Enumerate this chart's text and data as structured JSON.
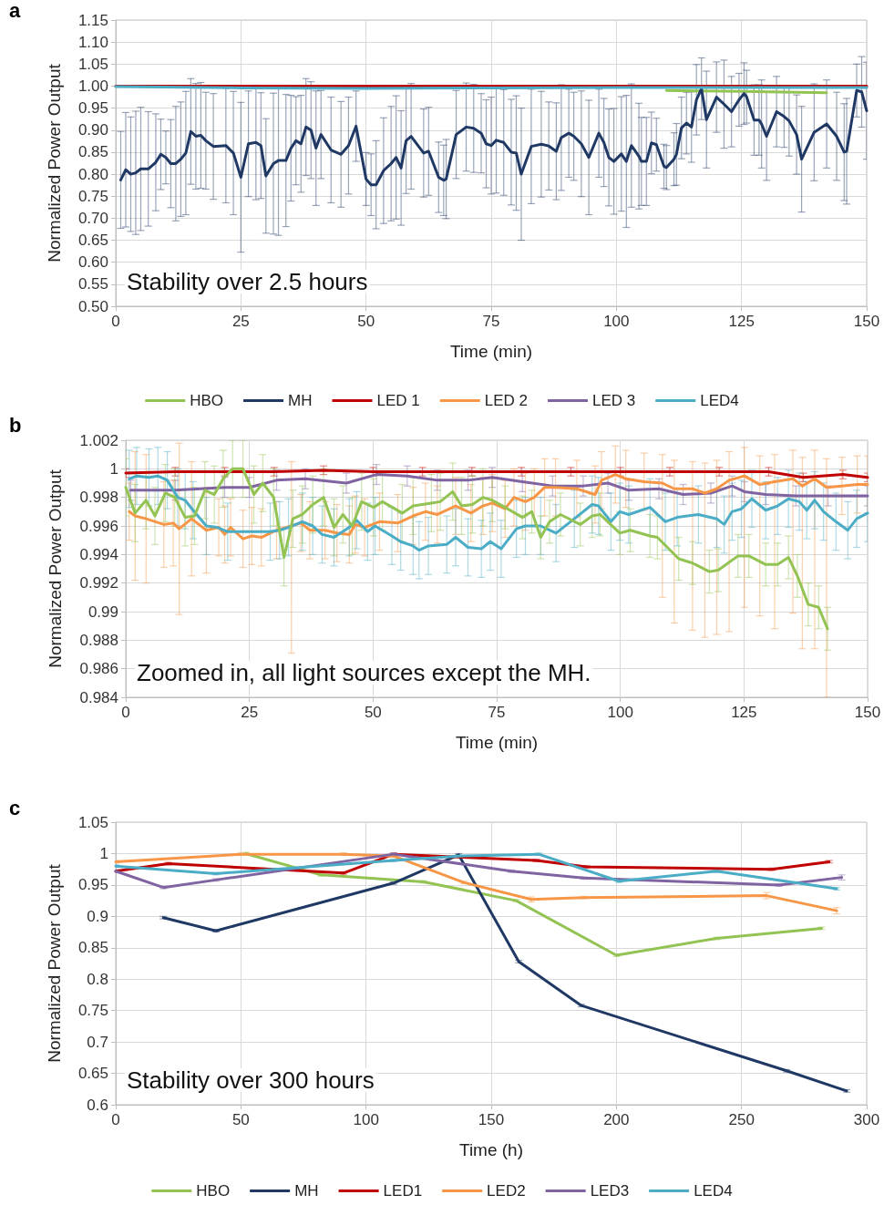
{
  "chart_data": [
    {
      "type": "line",
      "title": "a",
      "xlabel": "Time (min)",
      "ylabel": "Normalized Power Output",
      "annotations": [
        "Stability over 2.5 hours"
      ],
      "xlim": [
        0,
        150
      ],
      "xticks": [
        0,
        25,
        50,
        75,
        100,
        125,
        150
      ],
      "ylim": [
        0.5,
        1.15
      ],
      "yticks": [
        {
          "value": 0.5,
          "label": "0.50"
        },
        0.55,
        {
          "value": 0.6,
          "label": "0.60"
        },
        0.65,
        {
          "value": 0.7,
          "label": "0.70"
        },
        0.75,
        {
          "value": 0.8,
          "label": "0.80"
        },
        0.85,
        {
          "value": 0.9,
          "label": "0.90"
        },
        0.95,
        {
          "value": 1,
          "label": "1.00"
        },
        1.05,
        {
          "value": 1.1,
          "label": "1.10"
        },
        1.15
      ],
      "grid": true,
      "legend": "bottom",
      "marker": "none",
      "line_style": "solid",
      "series": [
        {
          "name": "HBO",
          "color": "#92c353",
          "x": [
            110,
            125,
            142
          ],
          "values": [
            0.99,
            0.988,
            0.985
          ]
        },
        {
          "name": "MH",
          "color": "#1f3864",
          "x": [
            1,
            2,
            3,
            4,
            5,
            6.5,
            8,
            9,
            10,
            11,
            12,
            13,
            14,
            15,
            16,
            17,
            18,
            19.5,
            22,
            23.5,
            25,
            26.5,
            28,
            29,
            30,
            31.5,
            32.5,
            34,
            35,
            36,
            37,
            38,
            39,
            40,
            41,
            43,
            45,
            46.5,
            48,
            50,
            51,
            52,
            53.5,
            55,
            56,
            57,
            58,
            59,
            61.5,
            62.5,
            64.5,
            65.5,
            66,
            68,
            70,
            71.5,
            73,
            74,
            75,
            76,
            77.5,
            79,
            80,
            81,
            83,
            85,
            86.5,
            88,
            89,
            90.5,
            91.5,
            93,
            94.5,
            96.5,
            97.5,
            98.5,
            99.5,
            101,
            102,
            103,
            104.5,
            105,
            106,
            107,
            108,
            109.5,
            110,
            111.5,
            112,
            113,
            114,
            115,
            116,
            117,
            118,
            120,
            121.5,
            123,
            124.5,
            125.5,
            126,
            127.5,
            128.5,
            129,
            130,
            132,
            133.5,
            134.5,
            136,
            137,
            139.5,
            142,
            144,
            145.5,
            146,
            148,
            149,
            150
          ],
          "values": [
            0.787,
            0.81,
            0.8,
            0.803,
            0.812,
            0.812,
            0.827,
            0.845,
            0.838,
            0.824,
            0.824,
            0.834,
            0.848,
            0.897,
            0.886,
            0.888,
            0.876,
            0.863,
            0.865,
            0.848,
            0.793,
            0.869,
            0.872,
            0.865,
            0.796,
            0.824,
            0.831,
            0.831,
            0.859,
            0.876,
            0.869,
            0.907,
            0.9,
            0.859,
            0.89,
            0.855,
            0.845,
            0.865,
            0.909,
            0.789,
            0.776,
            0.776,
            0.808,
            0.824,
            0.838,
            0.814,
            0.876,
            0.886,
            0.848,
            0.852,
            0.793,
            0.786,
            0.789,
            0.89,
            0.907,
            0.904,
            0.893,
            0.869,
            0.865,
            0.877,
            0.872,
            0.85,
            0.848,
            0.8,
            0.863,
            0.868,
            0.864,
            0.852,
            0.883,
            0.893,
            0.886,
            0.869,
            0.838,
            0.893,
            0.872,
            0.838,
            0.829,
            0.846,
            0.829,
            0.865,
            0.841,
            0.829,
            0.829,
            0.871,
            0.867,
            0.818,
            0.815,
            0.834,
            0.845,
            0.905,
            0.916,
            0.907,
            0.969,
            0.994,
            0.924,
            0.975,
            0.959,
            0.942,
            0.969,
            0.983,
            0.976,
            0.923,
            0.923,
            0.914,
            0.886,
            0.942,
            0.931,
            0.921,
            0.89,
            0.834,
            0.895,
            0.914,
            0.886,
            0.85,
            0.852,
            0.99,
            0.987,
            0.944
          ],
          "errors": [
            0.11,
            0.13,
            0.13,
            0.14,
            0.14,
            0.13,
            0.11,
            0.08,
            0.06,
            0.1,
            0.13,
            0.13,
            0.14,
            0.12,
            0.12,
            0.12,
            0.11,
            0.12,
            0.13,
            0.14,
            0.17,
            0.12,
            0.13,
            0.12,
            0.13,
            0.16,
            0.17,
            0.15,
            0.12,
            0.1,
            0.11,
            0.11,
            0.11,
            0.13,
            0.1,
            0.12,
            0.12,
            0.11,
            0.08,
            0.06,
            0.07,
            0.1,
            0.12,
            0.13,
            0.14,
            0.13,
            0.12,
            0.12,
            0.1,
            0.1,
            0.08,
            0.08,
            0.09,
            0.1,
            0.1,
            0.1,
            0.09,
            0.1,
            0.11,
            0.12,
            0.12,
            0.12,
            0.13,
            0.15,
            0.13,
            0.12,
            0.1,
            0.11,
            0.12,
            0.1,
            0.1,
            0.12,
            0.13,
            0.1,
            0.1,
            0.11,
            0.12,
            0.13,
            0.15,
            0.14,
            0.12,
            0.1,
            0.1,
            0.07,
            0.06,
            0.05,
            0.05,
            0.06,
            0.07,
            0.07,
            0.07,
            0.08,
            0.08,
            0.07,
            0.11,
            0.08,
            0.1,
            0.08,
            0.06,
            0.07,
            0.06,
            0.08,
            0.08,
            0.1,
            0.1,
            0.08,
            0.07,
            0.08,
            0.09,
            0.12,
            0.11,
            0.1,
            0.1,
            0.11,
            0.12,
            0.06,
            0.08,
            0.11
          ]
        },
        {
          "name": "LED 1",
          "color": "#c00000",
          "x": [
            0,
            25,
            50,
            75,
            100,
            125,
            150
          ],
          "values": [
            1,
            1,
            1,
            1,
            1,
            1,
            1
          ]
        },
        {
          "name": "LED 2",
          "color": "#f79646"
        },
        {
          "name": "LED 3",
          "color": "#8064a2"
        },
        {
          "name": "LED4",
          "color": "#4bacc6",
          "x": [
            0,
            25,
            50,
            75,
            100,
            125,
            150
          ],
          "values": [
            0.999,
            0.996,
            0.995,
            0.996,
            0.997,
            0.997,
            0.997
          ]
        }
      ]
    },
    {
      "type": "line",
      "title": "b",
      "xlabel": "Time (min)",
      "ylabel": "Normalized Power Output",
      "annotations": [
        "Zoomed in, all light sources except the MH."
      ],
      "xlim": [
        0,
        150
      ],
      "xticks": [
        0,
        25,
        50,
        75,
        100,
        125,
        150
      ],
      "ylim": [
        0.984,
        1.002
      ],
      "yticks": [
        0.984,
        0.986,
        0.988,
        0.99,
        0.992,
        0.994,
        0.996,
        0.998,
        1,
        1.002
      ],
      "grid": true,
      "marker": "none",
      "line_style": "solid",
      "series": [
        {
          "color": "#c00000",
          "x": [
            0,
            10,
            20,
            30,
            40,
            50,
            60,
            70,
            80,
            90,
            100,
            110,
            120,
            130,
            137,
            145,
            150
          ],
          "values": [
            0.9997,
            0.9998,
            0.9998,
            0.9998,
            0.9999,
            0.9998,
            0.9998,
            0.9998,
            0.9998,
            0.9998,
            0.9998,
            0.9998,
            0.9998,
            0.9998,
            0.9994,
            0.9996,
            0.9994
          ],
          "errors": [
            0.0003,
            0.0003,
            0.0003,
            0.0003,
            0.0003,
            0.0003,
            0.0003,
            0.0003,
            0.0003,
            0.0003,
            0.0003,
            0.0003,
            0.0003,
            0.0003,
            0.0003,
            0.0003,
            0.0003
          ]
        },
        {
          "color": "#8064a2",
          "x": [
            1,
            10,
            20,
            25,
            30.5,
            36.3,
            44.6,
            50.7,
            56.9,
            63,
            69.2,
            74.1,
            80.2,
            86.3,
            92.5,
            97.5,
            101.7,
            107.8,
            112.7,
            118.3,
            122.6,
            125.1,
            129.4,
            135.5,
            142,
            150
          ],
          "values": [
            0.9985,
            0.9985,
            0.9987,
            0.9987,
            0.9992,
            0.9993,
            0.999,
            0.9996,
            0.9995,
            0.9992,
            0.9992,
            0.9994,
            0.9991,
            0.9988,
            0.9988,
            0.999,
            0.9985,
            0.9986,
            0.9982,
            0.9983,
            0.9988,
            0.9984,
            0.9982,
            0.9981,
            0.9981,
            0.9981
          ],
          "errors": [
            0.0007,
            0.0007,
            0.0007,
            0.0007,
            0.0007,
            0.0007,
            0.0007,
            0.0007,
            0.0007,
            0.0007,
            0.0007,
            0.0007,
            0.0007,
            0.0007,
            0.0007,
            0.0007,
            0.0007,
            0.0007,
            0.0007,
            0.0007,
            0.0007,
            0.0007,
            0.0007,
            0.0007,
            0.0007,
            0.0007
          ]
        },
        {
          "color": "#f79646",
          "x": [
            0.7,
            1.9,
            4.1,
            7.7,
            9.6,
            10.8,
            13.3,
            16.3,
            18.8,
            20,
            21.2,
            23.7,
            25.5,
            27.4,
            30.5,
            33.5,
            35.4,
            37.2,
            40.3,
            42.7,
            45.2,
            46.4,
            48.3,
            51.3,
            55,
            58.1,
            60.6,
            63,
            66.7,
            69.8,
            72.2,
            74.1,
            76.7,
            78.5,
            80.8,
            82.6,
            84.7,
            86.9,
            91.2,
            94.9,
            96.2,
            99,
            101.1,
            104.8,
            108.5,
            110.9,
            114.6,
            117.1,
            119.5,
            122,
            125.1,
            128.2,
            131.2,
            134.9,
            136.8,
            139.3,
            141.7,
            144.8,
            147.9,
            150
          ],
          "values": [
            0.997,
            0.9967,
            0.9965,
            0.9961,
            0.9962,
            0.9958,
            0.9965,
            0.9957,
            0.9959,
            0.9954,
            0.9959,
            0.9951,
            0.9953,
            0.9952,
            0.9957,
            0.996,
            0.9962,
            0.9957,
            0.9957,
            0.9955,
            0.9954,
            0.9961,
            0.9959,
            0.9963,
            0.9962,
            0.9967,
            0.997,
            0.9968,
            0.9974,
            0.9969,
            0.9974,
            0.9976,
            0.9972,
            0.998,
            0.9977,
            0.998,
            0.9987,
            0.9987,
            0.9986,
            0.9982,
            0.9992,
            0.9996,
            0.9993,
            0.9991,
            0.999,
            0.9986,
            0.9986,
            0.9983,
            0.9986,
            0.9992,
            0.9995,
            0.9989,
            0.9991,
            0.9993,
            0.9988,
            0.9993,
            0.9987,
            0.9988,
            0.9989,
            0.9989
          ],
          "errors": [
            0.002,
            0.0045,
            0.0045,
            0.003,
            0.003,
            0.006,
            0.004,
            0.003,
            0.002,
            0.002,
            0.002,
            0.002,
            0.002,
            0.002,
            0.002,
            [
              0.9871,
              1.0005
            ],
            0.002,
            0.002,
            0.002,
            0.002,
            0.002,
            0.002,
            0.002,
            0.002,
            0.002,
            0.002,
            0.002,
            0.002,
            0.002,
            0.002,
            0.002,
            0.002,
            0.002,
            0.002,
            0.002,
            0.002,
            0.002,
            0.002,
            0.002,
            0.002,
            0.002,
            0.002,
            0.002,
            0.002,
            [
              0.991,
              1.001
            ],
            [
              0.9892,
              1.0006
            ],
            [
              0.9887,
              1.0005
            ],
            [
              0.9882,
              1.0004
            ],
            [
              0.9884,
              1.0006
            ],
            [
              0.9886,
              1.0012
            ],
            [
              0.9903,
              1.0015
            ],
            [
              0.9897,
              1.0009
            ],
            [
              0.9888,
              1.001
            ],
            [
              0.9899,
              1.0013
            ],
            [
              0.9874,
              1.0008
            ],
            [
              0.9874,
              1.0013
            ],
            [
              0.984,
              1.0007
            ],
            0.002,
            0.002,
            0.002
          ]
        },
        {
          "color": "#4bacc6",
          "x": [
            0.7,
            2.2,
            4.7,
            6.5,
            8.4,
            10.5,
            12,
            13.6,
            16.3,
            18.5,
            20.6,
            29.2,
            31.1,
            32.9,
            35.7,
            37.8,
            39.7,
            42.1,
            45.2,
            46.7,
            48.9,
            50.4,
            53.8,
            55.6,
            58.1,
            59.3,
            61.2,
            64.9,
            66.7,
            69.2,
            71.9,
            73.7,
            75.9,
            79,
            80.8,
            83.9,
            87,
            90.7,
            94.3,
            95.6,
            98.1,
            99.9,
            101.7,
            106,
            109.1,
            111.5,
            115.8,
            119.5,
            121,
            122.6,
            124.5,
            126.6,
            129.4,
            131.8,
            134,
            136.2,
            137.7,
            139.3,
            141.1,
            143.6,
            146,
            147.8,
            150
          ],
          "values": [
            0.9993,
            0.9995,
            0.9994,
            0.9995,
            0.9992,
            0.998,
            0.9978,
            0.9971,
            0.996,
            0.9959,
            0.9956,
            0.9956,
            0.9957,
            0.9959,
            0.9963,
            0.996,
            0.9954,
            0.9952,
            0.9959,
            0.9964,
            0.9956,
            0.996,
            0.9953,
            0.9949,
            0.9946,
            0.9943,
            0.9946,
            0.9947,
            0.9952,
            0.9945,
            0.9944,
            0.9949,
            0.9944,
            0.9958,
            0.996,
            0.996,
            0.9955,
            0.9965,
            0.9975,
            0.9974,
            0.9963,
            0.997,
            0.9968,
            0.9973,
            0.9963,
            0.9966,
            0.9968,
            0.9965,
            0.9961,
            0.997,
            0.9972,
            0.9979,
            0.9971,
            0.9974,
            0.9979,
            0.9977,
            0.9971,
            0.9978,
            0.997,
            0.9963,
            0.9957,
            0.9965,
            0.9969
          ],
          "errors": [
            0.002,
            0.002,
            0.002,
            0.002,
            0.002,
            0.002,
            0.002,
            0.002,
            0.002,
            null,
            0.002,
            0.002,
            0.002,
            0.002,
            0.002,
            0.002,
            0.002,
            0.002,
            0.002,
            0.002,
            0.002,
            0.002,
            0.002,
            0.002,
            0.002,
            0.002,
            0.002,
            0.002,
            0.002,
            0.002,
            0.002,
            0.002,
            0.002,
            0.002,
            0.002,
            0.002,
            0.002,
            0.002,
            0.002,
            0.002,
            0.002,
            0.002,
            0.002,
            0.002,
            0.002,
            0.002,
            0.002,
            0.002,
            0.002,
            0.002,
            0.002,
            0.002,
            0.002,
            0.002,
            0.002,
            0.002,
            0.002,
            0.002,
            0.002,
            0.002,
            0.002,
            0.002,
            0.002
          ]
        },
        {
          "color": "#92c353",
          "x": [
            0,
            1.9,
            4.1,
            5.9,
            8,
            9.9,
            12,
            13.9,
            16,
            17.9,
            19.7,
            21.6,
            23.7,
            25.9,
            27.7,
            29.9,
            32,
            33.8,
            35.7,
            37.8,
            40,
            42.1,
            43.9,
            45.8,
            47.7,
            50.1,
            51.9,
            55.9,
            58.1,
            61.8,
            63.6,
            66.1,
            67.9,
            70.1,
            72.2,
            74.1,
            76.7,
            80.2,
            82.1,
            83.9,
            85.7,
            87.9,
            91.9,
            94.3,
            95.9,
            99.9,
            102,
            106,
            107.5,
            111.8,
            114.6,
            118,
            119.8,
            123.8,
            126,
            129.4,
            131.8,
            134,
            135.8,
            138,
            140.1,
            141.9
          ],
          "values": [
            0.9987,
            0.9969,
            0.9978,
            0.9967,
            0.9983,
            0.998,
            0.9966,
            0.9967,
            0.9985,
            0.9982,
            0.9993,
            1,
            1,
            0.9982,
            0.999,
            0.998,
            0.9938,
            0.9965,
            0.9968,
            0.9975,
            0.998,
            0.9959,
            0.9968,
            0.996,
            0.9977,
            0.9973,
            0.9977,
            0.9969,
            0.9974,
            0.9976,
            0.9977,
            0.9984,
            0.9974,
            0.9975,
            0.998,
            0.9978,
            0.9973,
            0.9966,
            0.997,
            0.9952,
            0.9963,
            0.9968,
            0.9961,
            0.9967,
            0.9968,
            0.9955,
            0.9957,
            0.9953,
            0.9952,
            0.9937,
            0.9934,
            0.9928,
            0.9929,
            0.9939,
            0.9939,
            0.9933,
            0.9933,
            0.9938,
            0.9925,
            0.9905,
            0.9903,
            0.9888
          ],
          "errors": [
            0.002,
            0.002,
            0.002,
            0.002,
            0.002,
            0.002,
            0.002,
            0.002,
            0.002,
            0.002,
            0.002,
            0.002,
            0.002,
            0.002,
            0.002,
            0.002,
            0.002,
            0.002,
            0.002,
            0.002,
            0.002,
            0.002,
            0.002,
            0.002,
            0.002,
            0.002,
            0.002,
            0.002,
            0.002,
            0.002,
            0.002,
            0.002,
            0.002,
            0.002,
            0.002,
            0.0015,
            0.0015,
            0.0015,
            0.0015,
            0.0015,
            0.0015,
            0.0015,
            0.0015,
            0.0015,
            0.0015,
            0.0015,
            0.0015,
            0.0015,
            0.0015,
            0.0015,
            0.0015,
            0.0015,
            0.0015,
            0.0015,
            0.0015,
            0.0015,
            0.0015,
            0.0015,
            0.0015,
            0.0015,
            0.0015,
            0.0015
          ]
        }
      ]
    },
    {
      "type": "line",
      "title": "c",
      "xlabel": "Time (h)",
      "ylabel": "Normalized Power Output",
      "annotations": [
        "Stability over 300 hours"
      ],
      "xlim": [
        0,
        300
      ],
      "xticks": [
        0,
        50,
        100,
        150,
        200,
        250,
        300
      ],
      "ylim": [
        0.6,
        1.05
      ],
      "yticks": [
        0.6,
        0.65,
        0.7,
        0.75,
        0.8,
        0.85,
        0.9,
        0.95,
        1,
        1.05
      ],
      "grid": true,
      "legend": "bottom",
      "marker": "none",
      "line_style": "solid",
      "series": [
        {
          "name": "HBO",
          "color": "#92c353",
          "x": [
            52,
            82,
            123,
            160,
            200,
            240,
            282
          ],
          "values": [
            1,
            0.966,
            0.955,
            0.925,
            0.838,
            0.865,
            0.881
          ],
          "errors": [
            0.002,
            0.002,
            0.002,
            0.002,
            0.002,
            0.002,
            0.002
          ]
        },
        {
          "name": "MH",
          "color": "#1f3864",
          "x": [
            19,
            40,
            111,
            137,
            161,
            186,
            268,
            292
          ],
          "values": [
            0.898,
            0.877,
            0.953,
            0.998,
            0.828,
            0.758,
            0.654,
            0.622
          ],
          "errors": [
            0.002,
            0.002,
            0.002,
            0.002,
            0.002,
            0.002,
            0.002,
            0.002
          ]
        },
        {
          "name": "LED1",
          "color": "#c00000",
          "x": [
            0,
            21,
            91,
            111,
            168,
            188,
            262,
            285
          ],
          "values": [
            0.972,
            0.984,
            0.969,
            0.999,
            0.989,
            0.979,
            0.975,
            0.987
          ],
          "errors": [
            0.002,
            0.002,
            0.002,
            0.002,
            0.002,
            0.002,
            0.002,
            0.002
          ]
        },
        {
          "name": "LED2",
          "color": "#f79646",
          "x": [
            0,
            50,
            91,
            111,
            139,
            166,
            187,
            260,
            288
          ],
          "values": [
            0.987,
            0.999,
            0.999,
            0.996,
            0.954,
            0.927,
            0.93,
            0.933,
            0.909
          ],
          "errors": [
            0.002,
            0.002,
            0.002,
            0.002,
            0.002,
            0.004,
            0.002,
            0.005,
            0.005
          ]
        },
        {
          "name": "LED3",
          "color": "#8064a2",
          "x": [
            0,
            19,
            40,
            111,
            158,
            187,
            265,
            290
          ],
          "values": [
            0.972,
            0.946,
            0.958,
            0.999,
            0.972,
            0.961,
            0.95,
            0.962
          ],
          "errors": [
            0.002,
            0.002,
            0.002,
            0.002,
            0.002,
            0.002,
            0.002,
            0.004
          ]
        },
        {
          "name": "LED4",
          "color": "#4bacc6",
          "x": [
            0,
            40,
            111,
            137,
            169,
            201,
            240,
            288
          ],
          "values": [
            0.98,
            0.968,
            0.989,
            0.996,
            0.999,
            0.956,
            0.972,
            0.944
          ],
          "errors": [
            0.002,
            0.002,
            0.002,
            0.002,
            0.002,
            0.002,
            0.002,
            0.002
          ]
        }
      ]
    }
  ]
}
